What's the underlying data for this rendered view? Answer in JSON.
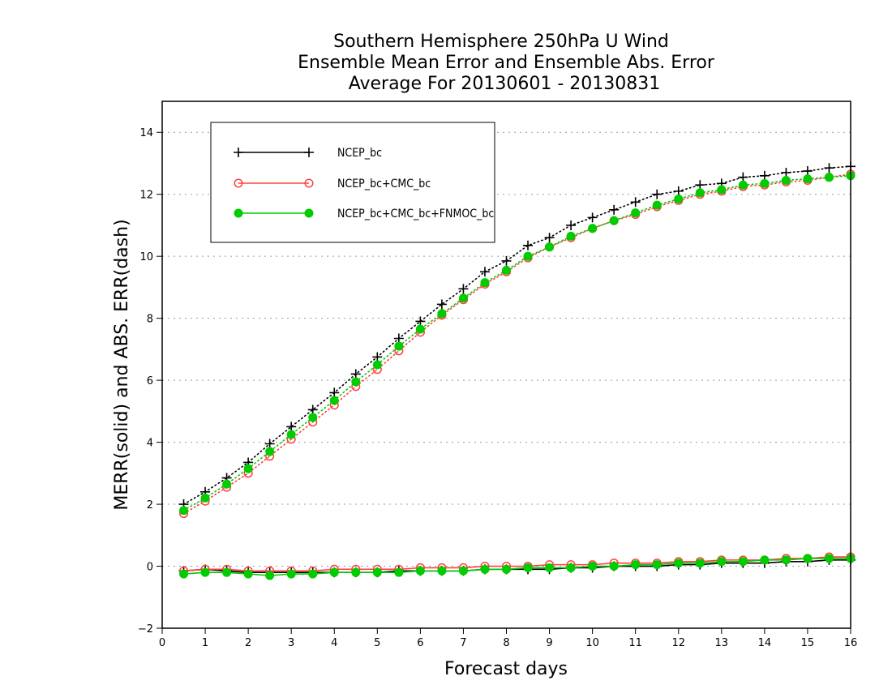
{
  "chart_data": {
    "type": "line",
    "title_lines": [
      "Southern Hemisphere 250hPa U Wind",
      "Ensemble Mean Error and Ensemble Abs. Error",
      "Average For 20130601 - 20130831"
    ],
    "xlabel": "Forecast days",
    "ylabel": "MERR(solid) and ABS. ERR(dash)",
    "xlim": [
      0,
      16
    ],
    "ylim": [
      -2,
      15
    ],
    "xticks": [
      0,
      1,
      2,
      3,
      4,
      5,
      6,
      7,
      8,
      9,
      10,
      11,
      12,
      13,
      14,
      15,
      16
    ],
    "yticks": [
      -2,
      0,
      2,
      4,
      6,
      8,
      10,
      12,
      14
    ],
    "grid": "horizontal dotted",
    "legend_placement": "top-left",
    "x": [
      0.5,
      1,
      1.5,
      2,
      2.5,
      3,
      3.5,
      4,
      4.5,
      5,
      5.5,
      6,
      6.5,
      7,
      7.5,
      8,
      8.5,
      9,
      9.5,
      10,
      10.5,
      11,
      11.5,
      12,
      12.5,
      13,
      13.5,
      14,
      14.5,
      15,
      15.5,
      16
    ],
    "series": [
      {
        "name": "NCEP_bc",
        "color": "#000000",
        "marker": "plus",
        "abs_err": [
          2.0,
          2.4,
          2.85,
          3.35,
          3.95,
          4.5,
          5.05,
          5.6,
          6.2,
          6.75,
          7.35,
          7.9,
          8.45,
          8.95,
          9.5,
          9.85,
          10.35,
          10.6,
          11.0,
          11.25,
          11.5,
          11.75,
          12.0,
          12.1,
          12.3,
          12.35,
          12.55,
          12.6,
          12.7,
          12.75,
          12.85,
          12.9
        ],
        "mean_err": [
          -0.15,
          -0.1,
          -0.15,
          -0.2,
          -0.2,
          -0.2,
          -0.2,
          -0.2,
          -0.2,
          -0.2,
          -0.15,
          -0.15,
          -0.15,
          -0.15,
          -0.1,
          -0.1,
          -0.1,
          -0.1,
          -0.05,
          -0.05,
          0.0,
          0.0,
          0.0,
          0.05,
          0.05,
          0.1,
          0.1,
          0.1,
          0.15,
          0.15,
          0.2,
          0.2
        ]
      },
      {
        "name": "NCEP_bc+CMC_bc",
        "color": "#ff4040",
        "marker": "open-circle",
        "abs_err": [
          1.7,
          2.1,
          2.55,
          3.0,
          3.55,
          4.1,
          4.65,
          5.2,
          5.8,
          6.35,
          6.95,
          7.55,
          8.1,
          8.6,
          9.1,
          9.5,
          9.95,
          10.3,
          10.6,
          10.9,
          11.15,
          11.35,
          11.6,
          11.8,
          12.0,
          12.1,
          12.25,
          12.3,
          12.4,
          12.45,
          12.55,
          12.65
        ],
        "mean_err": [
          -0.15,
          -0.1,
          -0.1,
          -0.15,
          -0.15,
          -0.15,
          -0.15,
          -0.1,
          -0.1,
          -0.1,
          -0.1,
          -0.05,
          -0.05,
          -0.05,
          0.0,
          0.0,
          0.0,
          0.05,
          0.05,
          0.05,
          0.1,
          0.1,
          0.1,
          0.15,
          0.15,
          0.2,
          0.2,
          0.2,
          0.25,
          0.25,
          0.3,
          0.3
        ]
      },
      {
        "name": "NCEP_bc+CMC_bc+FNMOC_bc",
        "color": "#00cc00",
        "marker": "filled-circle",
        "abs_err": [
          1.8,
          2.2,
          2.65,
          3.15,
          3.7,
          4.25,
          4.8,
          5.35,
          5.95,
          6.5,
          7.1,
          7.65,
          8.15,
          8.65,
          9.15,
          9.55,
          10.0,
          10.3,
          10.65,
          10.9,
          11.15,
          11.4,
          11.65,
          11.85,
          12.05,
          12.15,
          12.3,
          12.35,
          12.45,
          12.5,
          12.55,
          12.6
        ],
        "mean_err": [
          -0.25,
          -0.2,
          -0.2,
          -0.25,
          -0.3,
          -0.25,
          -0.25,
          -0.2,
          -0.2,
          -0.2,
          -0.2,
          -0.15,
          -0.15,
          -0.15,
          -0.1,
          -0.1,
          -0.05,
          -0.05,
          -0.05,
          0.0,
          0.0,
          0.05,
          0.05,
          0.1,
          0.1,
          0.15,
          0.15,
          0.2,
          0.2,
          0.25,
          0.25,
          0.25
        ]
      }
    ]
  }
}
